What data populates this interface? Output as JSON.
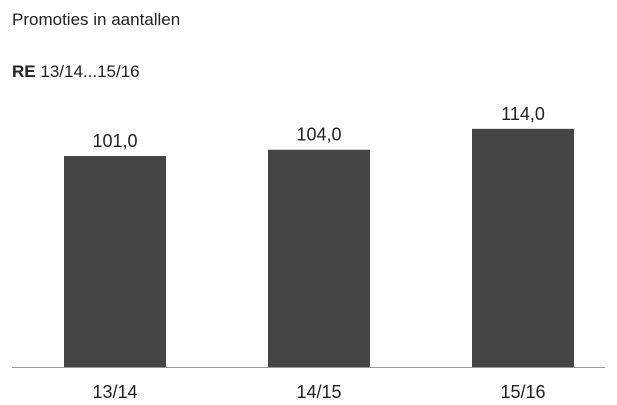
{
  "header": {
    "title": "Promoties in aantallen",
    "subtitle_bold": "RE",
    "subtitle_rest": "13/14...15/16"
  },
  "colors": {
    "bar": "#454545",
    "axis": "#999999",
    "text": "#222222"
  },
  "chart_data": {
    "type": "bar",
    "title": "Promoties in aantallen",
    "subtitle": "RE 13/14...15/16",
    "categories": [
      "13/14",
      "14/15",
      "15/16"
    ],
    "values": [
      101.0,
      104.0,
      114.0
    ],
    "value_labels": [
      "101,0",
      "104,0",
      "114,0"
    ],
    "xlabel": "",
    "ylabel": "",
    "grid": false,
    "legend": "none"
  }
}
